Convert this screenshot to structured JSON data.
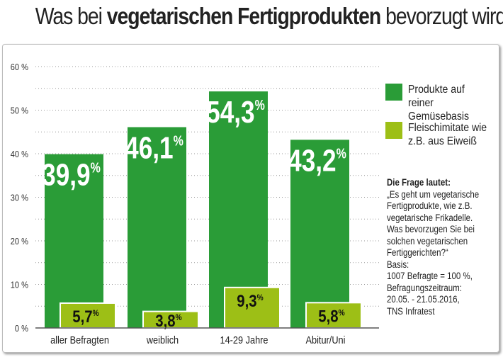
{
  "title": {
    "prefix": "Was bei ",
    "bold": "vegetarischen Fertigprodukten",
    "suffix": " bevorzugt wird:"
  },
  "chart_data": {
    "type": "bar",
    "title": "Was bei vegetarischen Fertigprodukten bevorzugt wird:",
    "categories": [
      "aller Befragten",
      "weiblich",
      "14-29 Jahre",
      "Abitur/Uni"
    ],
    "series": [
      {
        "name": "Produkte auf reiner Gemüsebasis",
        "values": [
          39.9,
          46.1,
          54.3,
          43.2
        ],
        "labels": [
          "39,9",
          "46,1",
          "54,3",
          "43,2"
        ],
        "color": "#2a9c37"
      },
      {
        "name": "Fleischimitate wie z.B. aus Eiweiß",
        "values": [
          5.7,
          3.8,
          9.3,
          5.8
        ],
        "labels": [
          "5,7",
          "3,8",
          "9,3",
          "5,8"
        ],
        "color": "#9dbf16"
      }
    ],
    "yticks": [
      "0 %",
      "10 %",
      "20 %",
      "30 %",
      "40 %",
      "50 %",
      "60 %"
    ],
    "ylim": [
      0,
      60
    ],
    "grid": true,
    "legend": "right",
    "unit": "%"
  },
  "legend": [
    "Produkte auf reiner Gemüsebasis",
    "Fleischimitate wie z.B. aus Eiweiß"
  ],
  "note": {
    "heading": "Die Frage lautet:",
    "lines": [
      "„Es geht um vegetarische",
      "Fertigprodukte, wie z.B.",
      "vegetarische Frikadelle.",
      "Was bevorzugen Sie bei",
      "solchen vegetarischen",
      "Fertiggerichten?“",
      "Basis:",
      "1007 Befragte = 100 %,",
      "Befragungszeitraum:",
      "20.05. - 21.05.2016,",
      "TNS Infratest"
    ]
  }
}
